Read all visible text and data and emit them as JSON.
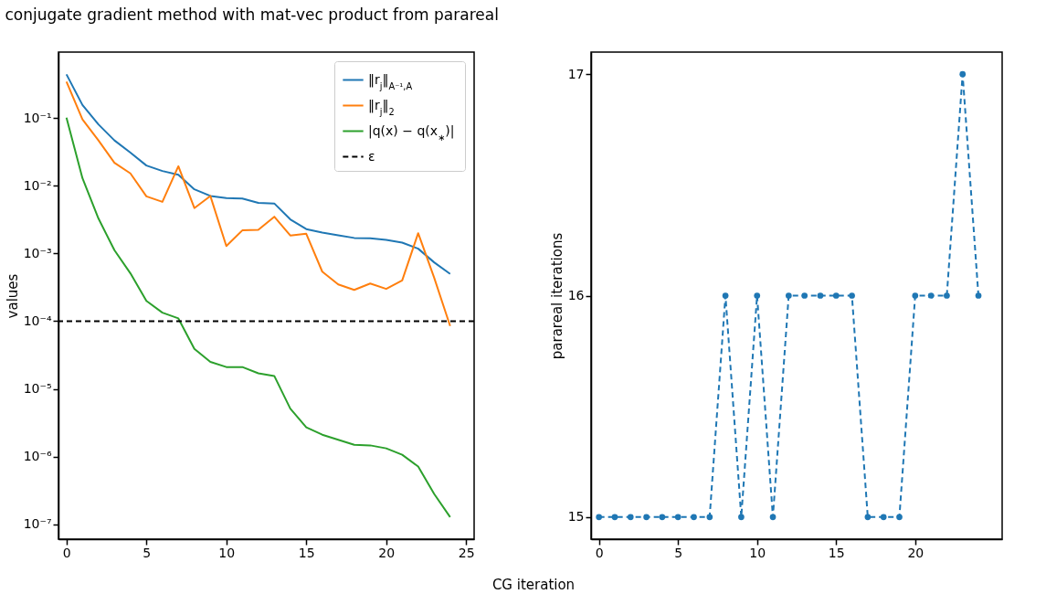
{
  "chart_data": [
    {
      "type": "line",
      "title": "conjugate gradient method with mat-vec product from parareal",
      "xlabel": "CG iteration",
      "ylabel": "values",
      "log": "y",
      "legend": "top right",
      "xlim": [
        -0.5,
        25.5
      ],
      "xticks": [
        0,
        5,
        10,
        15,
        20,
        25
      ],
      "ylim": [
        6e-08,
        0.95
      ],
      "yticks": [
        {
          "value": 1e-07,
          "label": "10⁻⁷"
        },
        {
          "value": 1e-06,
          "label": "10⁻⁶"
        },
        {
          "value": 1e-05,
          "label": "10⁻⁵"
        },
        {
          "value": 0.0001,
          "label": "10⁻⁴"
        },
        {
          "value": 0.001,
          "label": "10⁻³"
        },
        {
          "value": 0.01,
          "label": "10⁻²"
        },
        {
          "value": 0.1,
          "label": "10⁻¹"
        }
      ],
      "x": [
        0,
        1,
        2,
        3,
        4,
        5,
        6,
        7,
        8,
        9,
        10,
        11,
        12,
        13,
        14,
        15,
        16,
        17,
        18,
        19,
        20,
        21,
        22,
        23,
        24
      ],
      "series": [
        {
          "name": "‖r$_{j}$‖$_{A⁻¹,A}$",
          "color": "#1f77b4",
          "values": [
            0.445,
            0.157,
            0.081,
            0.047,
            0.031,
            0.02,
            0.0166,
            0.0146,
            0.0089,
            0.0071,
            0.0066,
            0.0065,
            0.0056,
            0.0055,
            0.0032,
            0.0023,
            0.00204,
            0.00186,
            0.0017,
            0.00168,
            0.00159,
            0.00145,
            0.00118,
            0.00074,
            0.0005
          ]
        },
        {
          "name": "‖r$_{j}$‖$_{2}$",
          "color": "#ff7f0e",
          "values": [
            0.347,
            0.096,
            0.047,
            0.022,
            0.0153,
            0.007,
            0.0058,
            0.0195,
            0.0047,
            0.0071,
            0.00129,
            0.0022,
            0.00224,
            0.0035,
            0.00185,
            0.00196,
            0.00054,
            0.00035,
            0.00029,
            0.00036,
            0.0003,
            0.0004,
            0.002,
            0.00044,
            8.5e-05
          ]
        },
        {
          "name": "|q(x) − q(x$_{∗}$)|",
          "color": "#2ca02c",
          "values": [
            0.102,
            0.013,
            0.0033,
            0.00112,
            0.00051,
            0.0002,
            0.000134,
            0.00011,
            3.9e-05,
            2.5e-05,
            2.1e-05,
            2.1e-05,
            1.7e-05,
            1.55e-05,
            5.1e-06,
            2.7e-06,
            2.1e-06,
            1.77e-06,
            1.49e-06,
            1.46e-06,
            1.32e-06,
            1.06e-06,
            7.1e-07,
            2.8e-07,
            1.27e-07
          ]
        }
      ],
      "ref_lines": [
        {
          "axis": "y",
          "value": 0.0001,
          "label": "ε",
          "color": "#000000",
          "line_style": "dashed"
        }
      ]
    },
    {
      "type": "line",
      "ylabel": "parareal iterations",
      "marker": "circle",
      "line_style": "dashed",
      "xlim": [
        -0.5,
        25.5
      ],
      "xticks": [
        0,
        5,
        10,
        15,
        20
      ],
      "ylim": [
        14.9,
        17.1
      ],
      "yticks": [
        15,
        16,
        17
      ],
      "x": [
        0,
        1,
        2,
        3,
        4,
        5,
        6,
        7,
        8,
        9,
        10,
        11,
        12,
        13,
        14,
        15,
        16,
        17,
        18,
        19,
        20,
        21,
        22,
        23,
        24
      ],
      "series": [
        {
          "color": "#1f77b4",
          "values": [
            15,
            15,
            15,
            15,
            15,
            15,
            15,
            15,
            16,
            15,
            16,
            15,
            16,
            16,
            16,
            16,
            16,
            15,
            15,
            15,
            16,
            16,
            16,
            17,
            16
          ]
        }
      ]
    }
  ]
}
